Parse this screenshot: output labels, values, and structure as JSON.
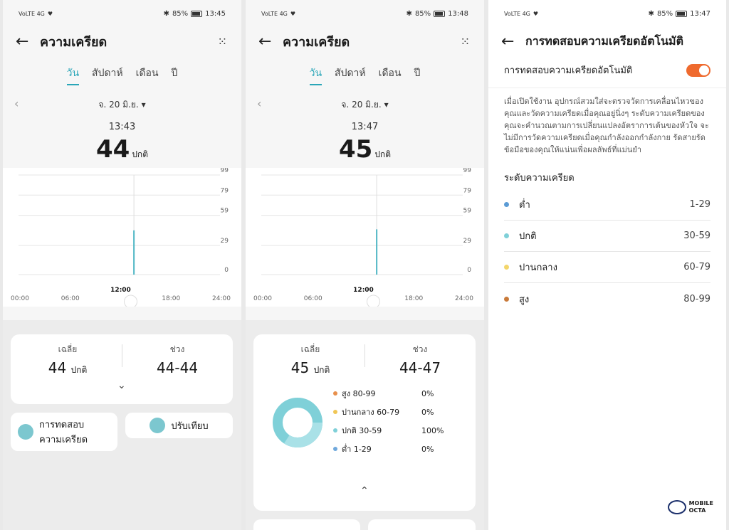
{
  "screens": [
    {
      "status": {
        "carrier": "VoLTE 4G",
        "battery": "85%",
        "time": "13:45"
      },
      "title": "ความเครียด",
      "tabs": [
        "วัน",
        "สัปดาห์",
        "เดือน",
        "ปี"
      ],
      "date": "จ. 20 มิ.ย.",
      "reading_time": "13:43",
      "reading_value": "44",
      "reading_unit": "ปกติ",
      "avg_label": "เฉลี่ย",
      "avg_value": "44",
      "avg_unit": "ปกติ",
      "range_label": "ช่วง",
      "range_value": "44-44",
      "test_button": "การทดสอบ ความเครียด",
      "calibrate_button": "ปรับเทียบ"
    },
    {
      "status": {
        "carrier": "VoLTE 4G",
        "battery": "85%",
        "time": "13:48"
      },
      "title": "ความเครียด",
      "tabs": [
        "วัน",
        "สัปดาห์",
        "เดือน",
        "ปี"
      ],
      "date": "จ. 20 มิ.ย.",
      "reading_time": "13:47",
      "reading_value": "45",
      "reading_unit": "ปกติ",
      "avg_label": "เฉลี่ย",
      "avg_value": "45",
      "avg_unit": "ปกติ",
      "range_label": "ช่วง",
      "range_value": "44-47",
      "legend": [
        {
          "name": "สูง 80-99",
          "pct": "0%",
          "color": "#e8904c"
        },
        {
          "name": "ปานกลาง 60-79",
          "pct": "0%",
          "color": "#f0c655"
        },
        {
          "name": "ปกติ 30-59",
          "pct": "100%",
          "color": "#7fd0d8"
        },
        {
          "name": "ต่ำ 1-29",
          "pct": "0%",
          "color": "#6fa8dc"
        }
      ]
    },
    {
      "status": {
        "carrier": "VoLTE 4G",
        "battery": "85%",
        "time": "13:47"
      },
      "title": "การทดสอบความเครียดอัตโนมัติ",
      "toggle_label": "การทดสอบความเครียดอัตโนมัติ",
      "description": "เมื่อเปิดใช้งาน อุปกรณ์สวมใส่จะตรวจวัดการเคลื่อนไหวของคุณและวัดความเครียดเมื่อคุณอยู่นิ่งๆ ระดับความเครียดของคุณจะคำนวณตามการเปลี่ยนแปลงอัตราการเต้นของหัวใจ จะไม่มีการวัดความเครียดเมื่อคุณกำลังออกกำลังกาย รัดสายรัดข้อมือของคุณให้แน่นเพื่อผลลัพธ์ที่แม่นยำ",
      "levels_title": "ระดับความเครียด",
      "levels": [
        {
          "name": "ต่ำ",
          "range": "1-29",
          "color": "#5b9bd5"
        },
        {
          "name": "ปกติ",
          "range": "30-59",
          "color": "#7fd0d8"
        },
        {
          "name": "ปานกลาง",
          "range": "60-79",
          "color": "#f3d66b"
        },
        {
          "name": "สูง",
          "range": "80-99",
          "color": "#c97a3a"
        }
      ]
    }
  ],
  "chart_y_ticks": [
    "99",
    "79",
    "59",
    "29",
    "0"
  ],
  "chart_x_ticks": [
    "00:00",
    "06:00",
    "12:00",
    "18:00",
    "24:00"
  ],
  "chart_data": [
    {
      "type": "bar",
      "x": [
        "13:43"
      ],
      "values": [
        44
      ],
      "ylim": [
        0,
        99
      ],
      "yticks": [
        0,
        29,
        59,
        79,
        99
      ],
      "xticks": [
        "00:00",
        "06:00",
        "12:00",
        "18:00",
        "24:00"
      ]
    },
    {
      "type": "bar",
      "x": [
        "13:47"
      ],
      "values": [
        45
      ],
      "ylim": [
        0,
        99
      ],
      "yticks": [
        0,
        29,
        59,
        79,
        99
      ],
      "xticks": [
        "00:00",
        "06:00",
        "12:00",
        "18:00",
        "24:00"
      ]
    }
  ],
  "logo": {
    "line1": "MOBILE",
    "line2": "OCTA"
  }
}
